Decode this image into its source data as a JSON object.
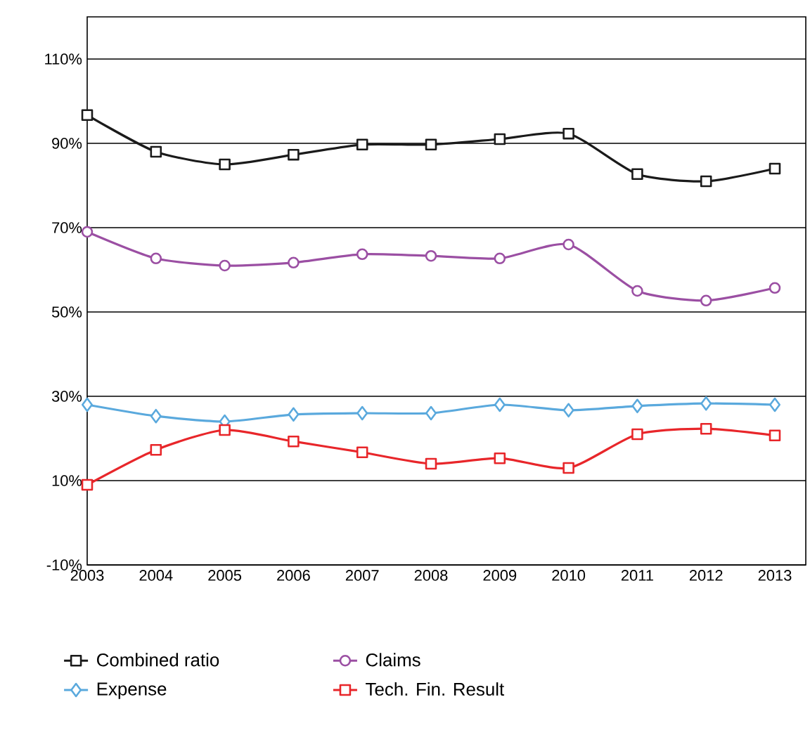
{
  "chart_data": {
    "type": "line",
    "x": [
      2003,
      2004,
      2005,
      2006,
      2007,
      2008,
      2009,
      2010,
      2011,
      2012,
      2013
    ],
    "xlim": [
      2003,
      2013.45
    ],
    "xticks": [
      2003,
      2004,
      2005,
      2006,
      2007,
      2008,
      2009,
      2010,
      2011,
      2012,
      2013
    ],
    "ylim": [
      -10,
      120
    ],
    "yticks": [
      {
        "value": -10,
        "label": "-10%"
      },
      {
        "value": 10,
        "label": "10%"
      },
      {
        "value": 30,
        "label": "30%"
      },
      {
        "value": 50,
        "label": "50%"
      },
      {
        "value": 70,
        "label": "70%"
      },
      {
        "value": 90,
        "label": "90%"
      },
      {
        "value": 110,
        "label": "110%"
      }
    ],
    "grid": "y",
    "legend": "bottom",
    "line_style": "solid",
    "series": [
      {
        "name": "Combined ratio",
        "color": "#1a1a1a",
        "marker": "square",
        "values": [
          96.7,
          88,
          85,
          87.3,
          89.7,
          89.7,
          91,
          92.3,
          82.7,
          81,
          84
        ]
      },
      {
        "name": "Claims",
        "color": "#9b4fa3",
        "marker": "circle",
        "values": [
          69,
          62.7,
          61,
          61.7,
          63.7,
          63.3,
          62.7,
          66,
          55,
          52.7,
          55.7
        ]
      },
      {
        "name": "Expense",
        "color": "#5aa9dd",
        "marker": "diamond",
        "values": [
          28,
          25.3,
          24,
          25.7,
          26,
          26,
          28,
          26.7,
          27.7,
          28.3,
          28
        ]
      },
      {
        "name": "Tech. Fin. Result",
        "color": "#e8262a",
        "marker": "square",
        "values": [
          9,
          17.3,
          22,
          19.3,
          16.7,
          14,
          15.3,
          13,
          21,
          22.3,
          20.7
        ]
      }
    ]
  }
}
